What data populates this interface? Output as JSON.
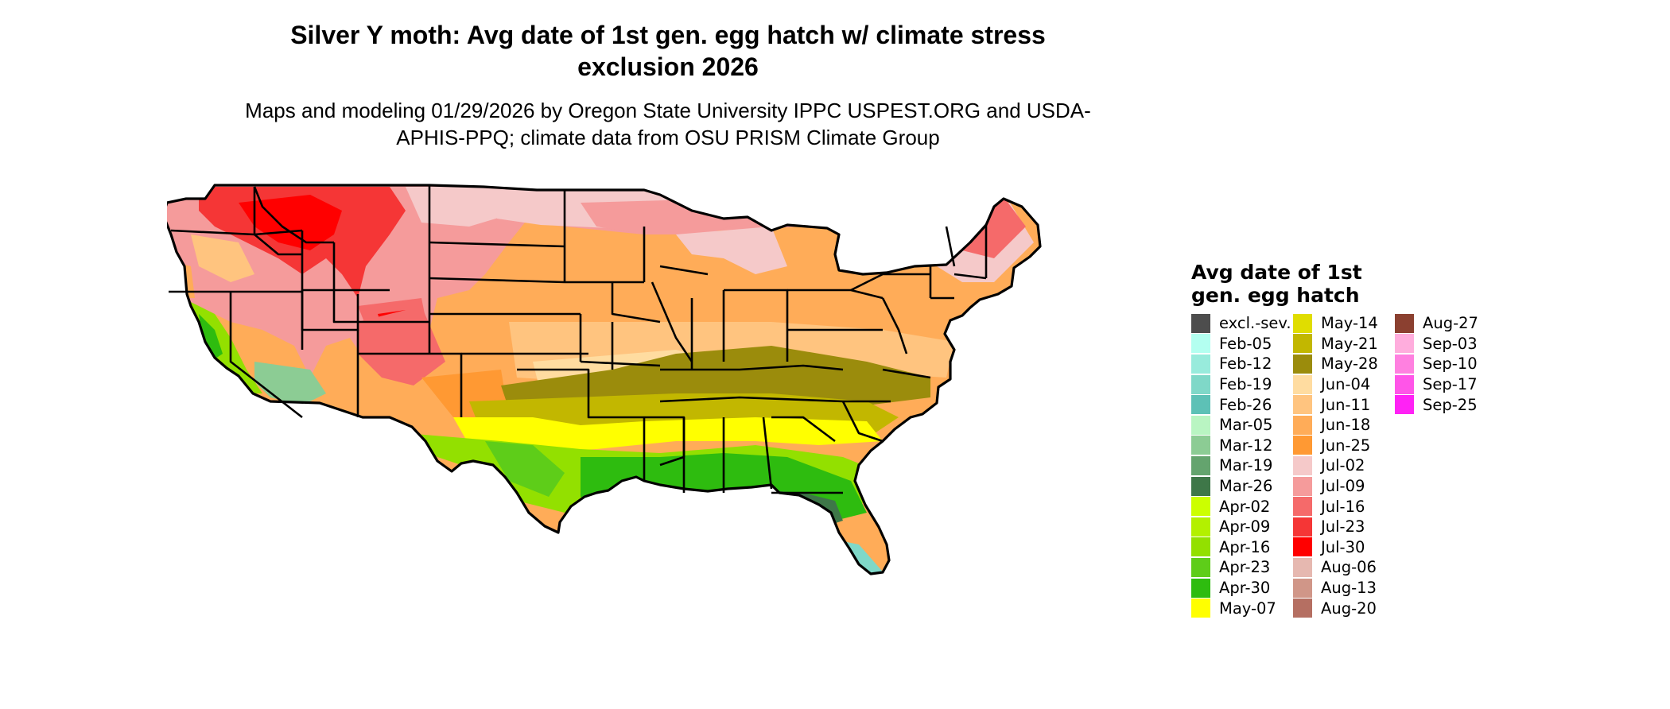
{
  "title": "Silver Y moth: Avg date of 1st gen. egg hatch w/ climate stress exclusion 2026",
  "subtitle": "Maps and modeling 01/29/2026 by Oregon State University IPPC USPEST.ORG and USDA-APHIS-PPQ; climate data from OSU PRISM Climate Group",
  "legend": {
    "title": "Avg date of 1st gen. egg hatch",
    "items": [
      {
        "label": "excl.-sev.",
        "color": "#4d4d4d"
      },
      {
        "label": "Feb-05",
        "color": "#b3fff0"
      },
      {
        "label": "Feb-12",
        "color": "#98ebdc"
      },
      {
        "label": "Feb-19",
        "color": "#7fd8c8"
      },
      {
        "label": "Feb-26",
        "color": "#5dc1b6"
      },
      {
        "label": "Mar-05",
        "color": "#b9f5c2"
      },
      {
        "label": "Mar-12",
        "color": "#8ccc94"
      },
      {
        "label": "Mar-19",
        "color": "#64a46e"
      },
      {
        "label": "Mar-26",
        "color": "#3e7748"
      },
      {
        "label": "Apr-02",
        "color": "#ccff00"
      },
      {
        "label": "Apr-09",
        "color": "#b3f000"
      },
      {
        "label": "Apr-16",
        "color": "#93e000"
      },
      {
        "label": "Apr-23",
        "color": "#5ecd19"
      },
      {
        "label": "Apr-30",
        "color": "#2ebc0f"
      },
      {
        "label": "May-07",
        "color": "#ffff00"
      },
      {
        "label": "May-14",
        "color": "#e0dd00"
      },
      {
        "label": "May-21",
        "color": "#c2b700"
      },
      {
        "label": "May-28",
        "color": "#9b8c0c"
      },
      {
        "label": "Jun-04",
        "color": "#ffdca0"
      },
      {
        "label": "Jun-11",
        "color": "#ffc47f"
      },
      {
        "label": "Jun-18",
        "color": "#ffac58"
      },
      {
        "label": "Jun-25",
        "color": "#ff9933"
      },
      {
        "label": "Jul-02",
        "color": "#f5c9c9"
      },
      {
        "label": "Jul-09",
        "color": "#f59b9b"
      },
      {
        "label": "Jul-16",
        "color": "#f56a6a"
      },
      {
        "label": "Jul-23",
        "color": "#f53636"
      },
      {
        "label": "Jul-30",
        "color": "#ff0000"
      },
      {
        "label": "Aug-06",
        "color": "#e6b8b0"
      },
      {
        "label": "Aug-13",
        "color": "#d09688"
      },
      {
        "label": "Aug-20",
        "color": "#b56f62"
      },
      {
        "label": "Aug-27",
        "color": "#8b4030"
      },
      {
        "label": "Sep-03",
        "color": "#ffaddd"
      },
      {
        "label": "Sep-10",
        "color": "#ff80e0"
      },
      {
        "label": "Sep-17",
        "color": "#ff55e8"
      },
      {
        "label": "Sep-25",
        "color": "#ff22f5"
      }
    ]
  },
  "colors": {
    "boundary": "#000000",
    "background": "#ffffff"
  }
}
